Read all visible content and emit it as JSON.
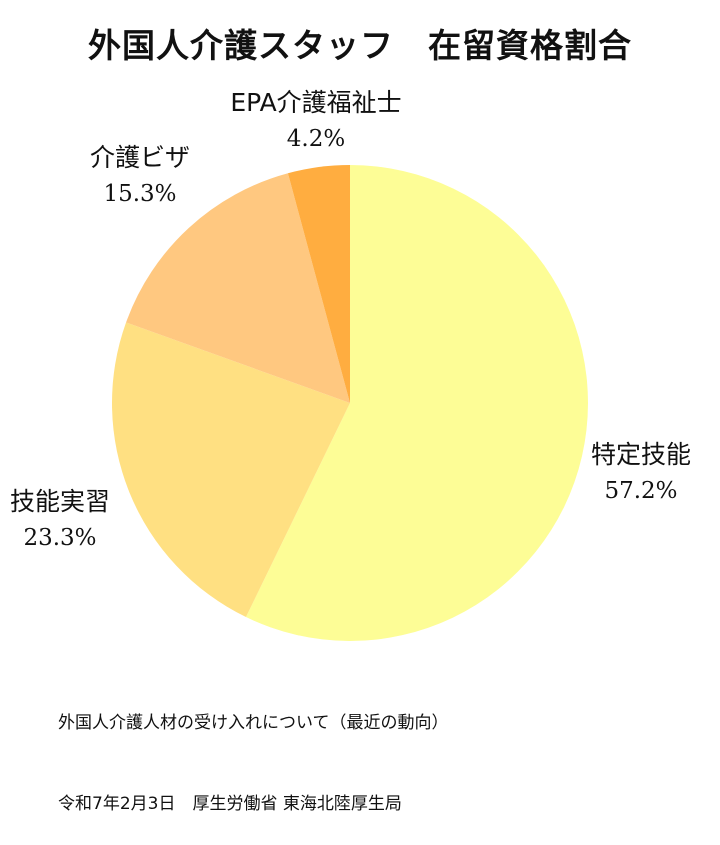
{
  "chart_data": {
    "type": "pie",
    "title": "外国人介護スタッフ　在留資格割合",
    "categories": [
      "特定技能",
      "技能実習",
      "介護ビザ",
      "EPA介護福祉士"
    ],
    "values": [
      57.2,
      23.3,
      15.3,
      4.2
    ],
    "value_labels": [
      "57.2%",
      "23.3%",
      "15.3%",
      "4.2%"
    ],
    "colors": [
      "#FDFD96",
      "#FFE082",
      "#FFC880",
      "#FFAD40"
    ],
    "start_angle": "12 o'clock",
    "direction": "clockwise",
    "legend": "none"
  },
  "source": {
    "line1": "外国人介護人材の受け入れについて（最近の動向）",
    "line2": "令和7年2月3日　厚生労働省 東海北陸厚生局"
  }
}
